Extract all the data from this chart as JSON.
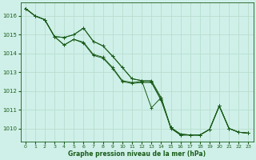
{
  "background_color": "#cff0e8",
  "grid_color": "#b8ddd0",
  "line_color": "#1a5c1a",
  "marker_color": "#1a5c1a",
  "xlabel": "Graphe pression niveau de la mer (hPa)",
  "xlim": [
    -0.5,
    23.5
  ],
  "ylim": [
    1009.3,
    1016.7
  ],
  "yticks": [
    1010,
    1011,
    1012,
    1013,
    1014,
    1015,
    1016
  ],
  "xticks": [
    0,
    1,
    2,
    3,
    4,
    5,
    6,
    7,
    8,
    9,
    10,
    11,
    12,
    13,
    14,
    15,
    16,
    17,
    18,
    19,
    20,
    21,
    22,
    23
  ],
  "series": [
    [
      1016.4,
      1016.0,
      1015.8,
      1014.9,
      1014.85,
      1015.0,
      1015.35,
      1014.65,
      1014.4,
      1013.85,
      1013.25,
      1012.65,
      1012.55,
      1011.1,
      1011.65,
      1010.0,
      1009.65,
      1009.65,
      1009.65,
      1009.95,
      1011.2,
      1010.0,
      1009.8,
      1009.75
    ],
    [
      1016.4,
      1016.0,
      1015.8,
      1014.9,
      1014.85,
      1015.0,
      1015.35,
      1014.65,
      1014.4,
      1013.85,
      1013.25,
      1012.65,
      1012.55,
      1012.55,
      1011.65,
      1010.05,
      1009.65,
      1009.65,
      1009.65,
      1009.95,
      1011.2,
      1010.0,
      1009.8,
      1009.75
    ],
    [
      1016.4,
      1016.0,
      1015.8,
      1014.9,
      1014.45,
      1014.75,
      1014.6,
      1013.95,
      1013.8,
      1013.25,
      1012.55,
      1012.45,
      1012.5,
      1012.5,
      1011.55,
      1010.05,
      1009.7,
      1009.65,
      1009.65,
      1009.95,
      1011.2,
      1010.0,
      1009.8,
      1009.75
    ],
    [
      1016.4,
      1016.0,
      1015.8,
      1014.9,
      1014.45,
      1014.75,
      1014.55,
      1013.9,
      1013.75,
      1013.2,
      1012.5,
      1012.4,
      1012.45,
      1012.45,
      1011.5,
      1010.05,
      1009.7,
      1009.65,
      1009.65,
      1009.95,
      1011.2,
      1010.0,
      1009.8,
      1009.75
    ]
  ]
}
